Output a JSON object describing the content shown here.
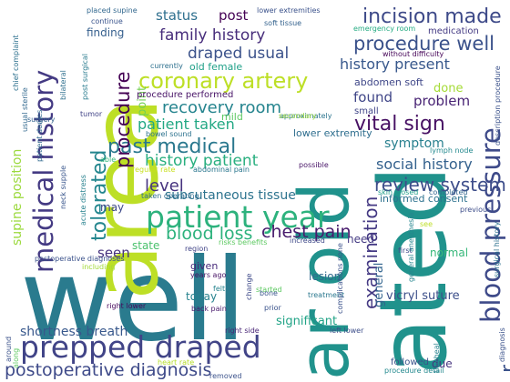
{
  "word_cloud": {
    "words": [
      {
        "text": "well",
        "color": "#2a7b8e"
      },
      {
        "text": "ated",
        "color": "#20928c"
      },
      {
        "text": "area",
        "color": "#bddf26"
      },
      {
        "text": "ar old",
        "color": "#20928c"
      },
      {
        "text": "patient year",
        "color": "#2db27d"
      },
      {
        "text": "prepped draped",
        "color": "#414487"
      },
      {
        "text": "medical history",
        "color": "#443a83"
      },
      {
        "text": "blood pressure",
        "color": "#3e4a89"
      },
      {
        "text": "incision made",
        "color": "#3e4a89"
      },
      {
        "text": "procedure well",
        "color": "#3b528b"
      },
      {
        "text": "coronary artery",
        "color": "#bddf26"
      },
      {
        "text": "past medical",
        "color": "#2a788e"
      },
      {
        "text": "vital sign",
        "color": "#471063"
      },
      {
        "text": "family history",
        "color": "#472d7b"
      },
      {
        "text": "history present",
        "color": "#38588c"
      },
      {
        "text": "recovery room",
        "color": "#25848e"
      },
      {
        "text": "draped usual",
        "color": "#3b528b"
      },
      {
        "text": "history patient",
        "color": "#29af7f"
      },
      {
        "text": "social history",
        "color": "#34618d"
      },
      {
        "text": "review system",
        "color": "#3d4d8a"
      },
      {
        "text": "chest pain",
        "color": "#481b6d"
      },
      {
        "text": "blood loss",
        "color": "#2db27d"
      },
      {
        "text": "postoperative diagnosis",
        "color": "#3e4a89"
      },
      {
        "text": "shortness breath",
        "color": "#38588c"
      },
      {
        "text": "examination",
        "color": "#443983"
      },
      {
        "text": "procedure",
        "color": "#440154"
      },
      {
        "text": "tolerated",
        "color": "#24868e"
      },
      {
        "text": "supine position",
        "color": "#9bd93c"
      },
      {
        "text": "subcutaneous tissue",
        "color": "#2c738e"
      },
      {
        "text": "patient taken",
        "color": "#22a884"
      },
      {
        "text": "level",
        "color": "#46337f"
      },
      {
        "text": "status",
        "color": "#2e6f8e"
      },
      {
        "text": "post",
        "color": "#440154"
      },
      {
        "text": "found",
        "color": "#404688"
      },
      {
        "text": "problem",
        "color": "#482374"
      },
      {
        "text": "symptom",
        "color": "#277f8e"
      },
      {
        "text": "seen",
        "color": "#46327e"
      },
      {
        "text": "done",
        "color": "#a5db36"
      },
      {
        "text": "general",
        "color": "#32648e"
      },
      {
        "text": "vicryl suture",
        "color": "#3c4f8a"
      },
      {
        "text": "significant",
        "color": "#20a386"
      },
      {
        "text": "lesion",
        "color": "#306a8e"
      },
      {
        "text": "today",
        "color": "#26828e"
      },
      {
        "text": "normal",
        "color": "#35b779"
      },
      {
        "text": "point",
        "color": "#75d054"
      },
      {
        "text": "finding",
        "color": "#355f8d"
      },
      {
        "text": "need",
        "color": "#443a83"
      },
      {
        "text": "may",
        "color": "#3e4989"
      },
      {
        "text": "due",
        "color": "#46327e"
      },
      {
        "text": "given",
        "color": "#472a7a"
      },
      {
        "text": "state",
        "color": "#4ac16d"
      },
      {
        "text": "lower extremity",
        "color": "#2e6e8e"
      },
      {
        "text": "abdomen soft",
        "color": "#3f4788"
      },
      {
        "text": "informed consent",
        "color": "#2c718e"
      },
      {
        "text": "procedure performed",
        "color": "#481467"
      },
      {
        "text": "old female",
        "color": "#1fa088"
      },
      {
        "text": "small",
        "color": "#404588"
      },
      {
        "text": "mild",
        "color": "#5ec962"
      },
      {
        "text": "followed",
        "color": "#3b528b"
      },
      {
        "text": "lower extremities",
        "color": "#3b528b"
      },
      {
        "text": "placed supine",
        "color": "#31678e"
      },
      {
        "text": "soft tissue",
        "color": "#33628d"
      },
      {
        "text": "continue",
        "color": "#3a548c"
      },
      {
        "text": "emergency room",
        "color": "#25ab82"
      },
      {
        "text": "medication",
        "color": "#443a83"
      },
      {
        "text": "without difficulty",
        "color": "#450457"
      },
      {
        "text": "bowel sound",
        "color": "#2c728e"
      },
      {
        "text": "approximately",
        "color": "#2b748e"
      },
      {
        "text": "currently",
        "color": "#2d708e"
      },
      {
        "text": "regular rate",
        "color": "#c8e020"
      },
      {
        "text": "abdominal pain",
        "color": "#2a768e"
      },
      {
        "text": "taken operating",
        "color": "#2f6c8e"
      },
      {
        "text": "skin closed",
        "color": "#1f9e89"
      },
      {
        "text": "completed",
        "color": "#32658e"
      },
      {
        "text": "risks benefits",
        "color": "#5ec962"
      },
      {
        "text": "increased",
        "color": "#3e4989"
      },
      {
        "text": "postoperative diagnoses",
        "color": "#3b528b"
      },
      {
        "text": "region",
        "color": "#414487"
      },
      {
        "text": "started",
        "color": "#5ec962"
      },
      {
        "text": "years ago",
        "color": "#471365"
      },
      {
        "text": "felt",
        "color": "#25838e"
      },
      {
        "text": "bone",
        "color": "#39568c"
      },
      {
        "text": "treatment",
        "color": "#2a778e"
      },
      {
        "text": "right lower",
        "color": "#46085c"
      },
      {
        "text": "back pain",
        "color": "#481a6c"
      },
      {
        "text": "prior",
        "color": "#3a538b"
      },
      {
        "text": "right side",
        "color": "#482576"
      },
      {
        "text": "left lower",
        "color": "#3d4e8a"
      },
      {
        "text": "heart rate",
        "color": "#b5de2b"
      },
      {
        "text": "removed",
        "color": "#3b528b"
      },
      {
        "text": "procedure detail",
        "color": "#23898e"
      },
      {
        "text": "first",
        "color": "#3e4a89"
      },
      {
        "text": "see",
        "color": "#bddf26"
      },
      {
        "text": "previous",
        "color": "#3d4d8a"
      },
      {
        "text": "possible",
        "color": "#481467"
      },
      {
        "text": "secondary",
        "color": "#98d83e"
      },
      {
        "text": "lymph node",
        "color": "#23898e"
      },
      {
        "text": "chief complaint",
        "color": "#2d708e"
      },
      {
        "text": "usual sterile",
        "color": "#31688e"
      },
      {
        "text": "bilateral",
        "color": "#2e6f8e"
      },
      {
        "text": "post surgical",
        "color": "#297b8e"
      },
      {
        "text": "tumor",
        "color": "#414487"
      },
      {
        "text": "surgery",
        "color": "#33638d"
      },
      {
        "text": "patient denies",
        "color": "#30698e"
      },
      {
        "text": "neck supple",
        "color": "#39568c"
      },
      {
        "text": "acute distress",
        "color": "#26818e"
      },
      {
        "text": "able",
        "color": "#35b779"
      },
      {
        "text": "including",
        "color": "#a2da37"
      },
      {
        "text": "change",
        "color": "#3e4a89"
      },
      {
        "text": "complications none",
        "color": "#3b528b"
      },
      {
        "text": "general anesthesia",
        "color": "#25858e"
      },
      {
        "text": "tracheal",
        "color": "#26818e"
      },
      {
        "text": "surgical history",
        "color": "#2d718e"
      },
      {
        "text": "description procedure",
        "color": "#3b528b"
      },
      {
        "text": "diagnosis",
        "color": "#3b528b"
      },
      {
        "text": "around",
        "color": "#3b528b"
      },
      {
        "text": "along",
        "color": "#5ec962"
      },
      {
        "text": "r",
        "color": "#3b528b"
      }
    ]
  }
}
